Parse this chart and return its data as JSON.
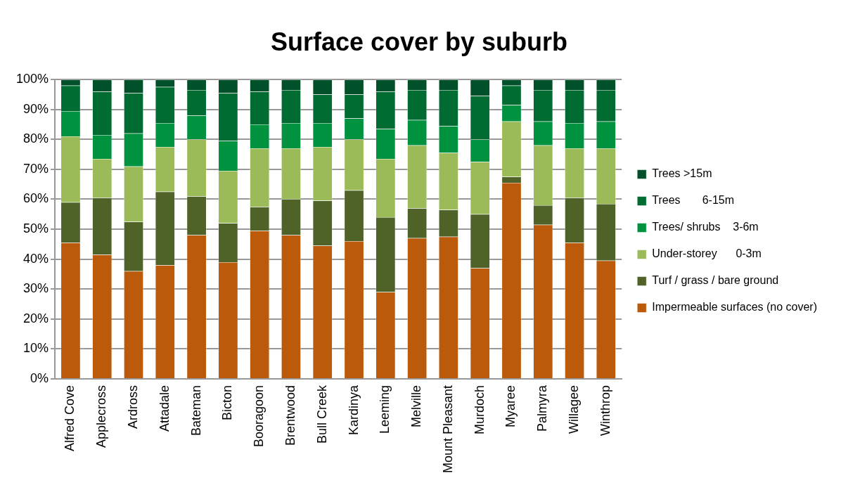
{
  "chart_data": {
    "type": "bar",
    "title": "Surface cover by suburb",
    "stacked": true,
    "legend": "right",
    "grid": "y",
    "categories": [
      "Alfred Cove",
      "Applecross",
      "Ardross",
      "Attadale",
      "Bateman",
      "Bicton",
      "Booragoon",
      "Brentwood",
      "Bull Creek",
      "Kardinya",
      "Leeming",
      "Melville",
      "Mount Pleasant",
      "Murdoch",
      "Myaree",
      "Palmyra",
      "Willagee",
      "Winthrop"
    ],
    "ylim": [
      0,
      100
    ],
    "yticks": [
      {
        "value": 0,
        "label": "0%"
      },
      {
        "value": 10,
        "label": "10%"
      },
      {
        "value": 20,
        "label": "20%"
      },
      {
        "value": 30,
        "label": "30%"
      },
      {
        "value": 40,
        "label": "40%"
      },
      {
        "value": 50,
        "label": "50%"
      },
      {
        "value": 60,
        "label": "60%"
      },
      {
        "value": 70,
        "label": "70%"
      },
      {
        "value": 80,
        "label": "80%"
      },
      {
        "value": 90,
        "label": "90%"
      },
      {
        "value": 100,
        "label": "100%"
      }
    ],
    "series": [
      {
        "name": "Impermeable surfaces (no cover)",
        "color": "#bb5a0a",
        "values": [
          45.5,
          41.5,
          36,
          38,
          48,
          39,
          49.5,
          48,
          44.5,
          46,
          29,
          47,
          47.5,
          37,
          65.5,
          51.5,
          45.5,
          39.5
        ]
      },
      {
        "name": "Turf / grass / bare ground",
        "color": "#4f6228",
        "values": [
          13.5,
          19,
          16.5,
          24.5,
          13,
          13,
          8,
          12,
          15,
          17,
          25,
          10,
          9,
          18,
          2,
          6.5,
          15,
          19
        ]
      },
      {
        "name": "Under-storey      0-3m",
        "color": "#9bbb59",
        "values": [
          22,
          13,
          18.5,
          15,
          19,
          17.5,
          19.5,
          17,
          18,
          17,
          19.5,
          21,
          19,
          17.5,
          18.5,
          20,
          16.5,
          18.5
        ]
      },
      {
        "name": "Trees/ shrubs    3-6m",
        "color": "#00923f",
        "values": [
          8.5,
          8,
          11,
          8,
          8,
          10,
          8,
          8.5,
          8,
          7,
          10,
          8.5,
          9,
          7.5,
          5.5,
          8,
          8.5,
          9
        ]
      },
      {
        "name": "Trees       6-15m",
        "color": "#006c31",
        "values": [
          8.5,
          14.5,
          13.5,
          12,
          8.5,
          16,
          11,
          11,
          9.5,
          8,
          12.5,
          10,
          12,
          14.5,
          6.5,
          10.5,
          11,
          10.5
        ]
      },
      {
        "name": "Trees >15m",
        "color": "#00502a",
        "values": [
          2,
          4,
          4.5,
          2.5,
          3.5,
          4.5,
          4,
          3.5,
          5,
          5,
          4,
          3.5,
          3.5,
          5.5,
          2,
          3.5,
          3.5,
          3.5
        ]
      }
    ]
  }
}
